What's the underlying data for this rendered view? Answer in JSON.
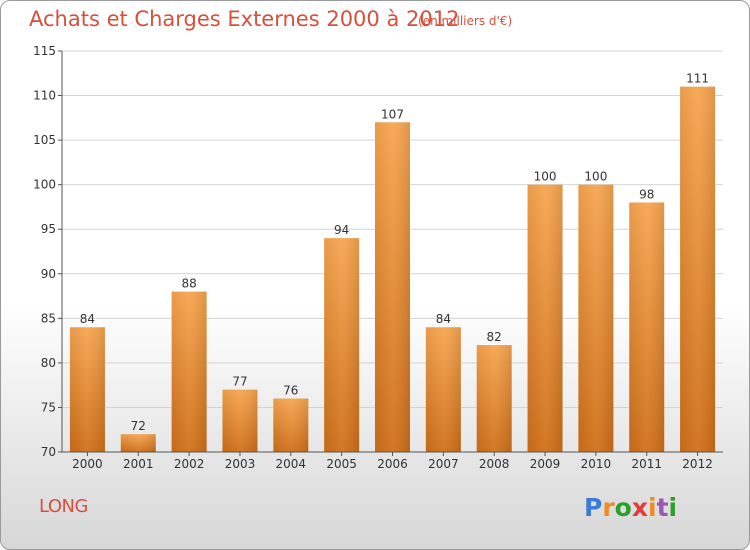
{
  "title": "Achats et Charges Externes 2000 à 2012",
  "subtitle": "(en milliers d'€)",
  "commune": "LONG",
  "logo": {
    "text": "Proxiti",
    "letter_colors": [
      "#3a7bd5",
      "#f08a24",
      "#2ca02c",
      "#e23b3b",
      "#f08a24",
      "#9b59b6",
      "#2ca02c"
    ]
  },
  "colors": {
    "title": "#d8503a",
    "bar_light": "#f7a54f",
    "bar_dark": "#cf6f18",
    "grid": "#d4d4d4"
  },
  "chart_data": {
    "type": "bar",
    "categories": [
      "2000",
      "2001",
      "2002",
      "2003",
      "2004",
      "2005",
      "2006",
      "2007",
      "2008",
      "2009",
      "2010",
      "2011",
      "2012"
    ],
    "values": [
      84,
      72,
      88,
      77,
      76,
      94,
      107,
      84,
      82,
      100,
      100,
      98,
      111
    ],
    "ylim": [
      70,
      115
    ],
    "yticks": [
      70,
      75,
      80,
      85,
      90,
      95,
      100,
      105,
      110,
      115
    ],
    "grid": true,
    "data_labels": true
  }
}
